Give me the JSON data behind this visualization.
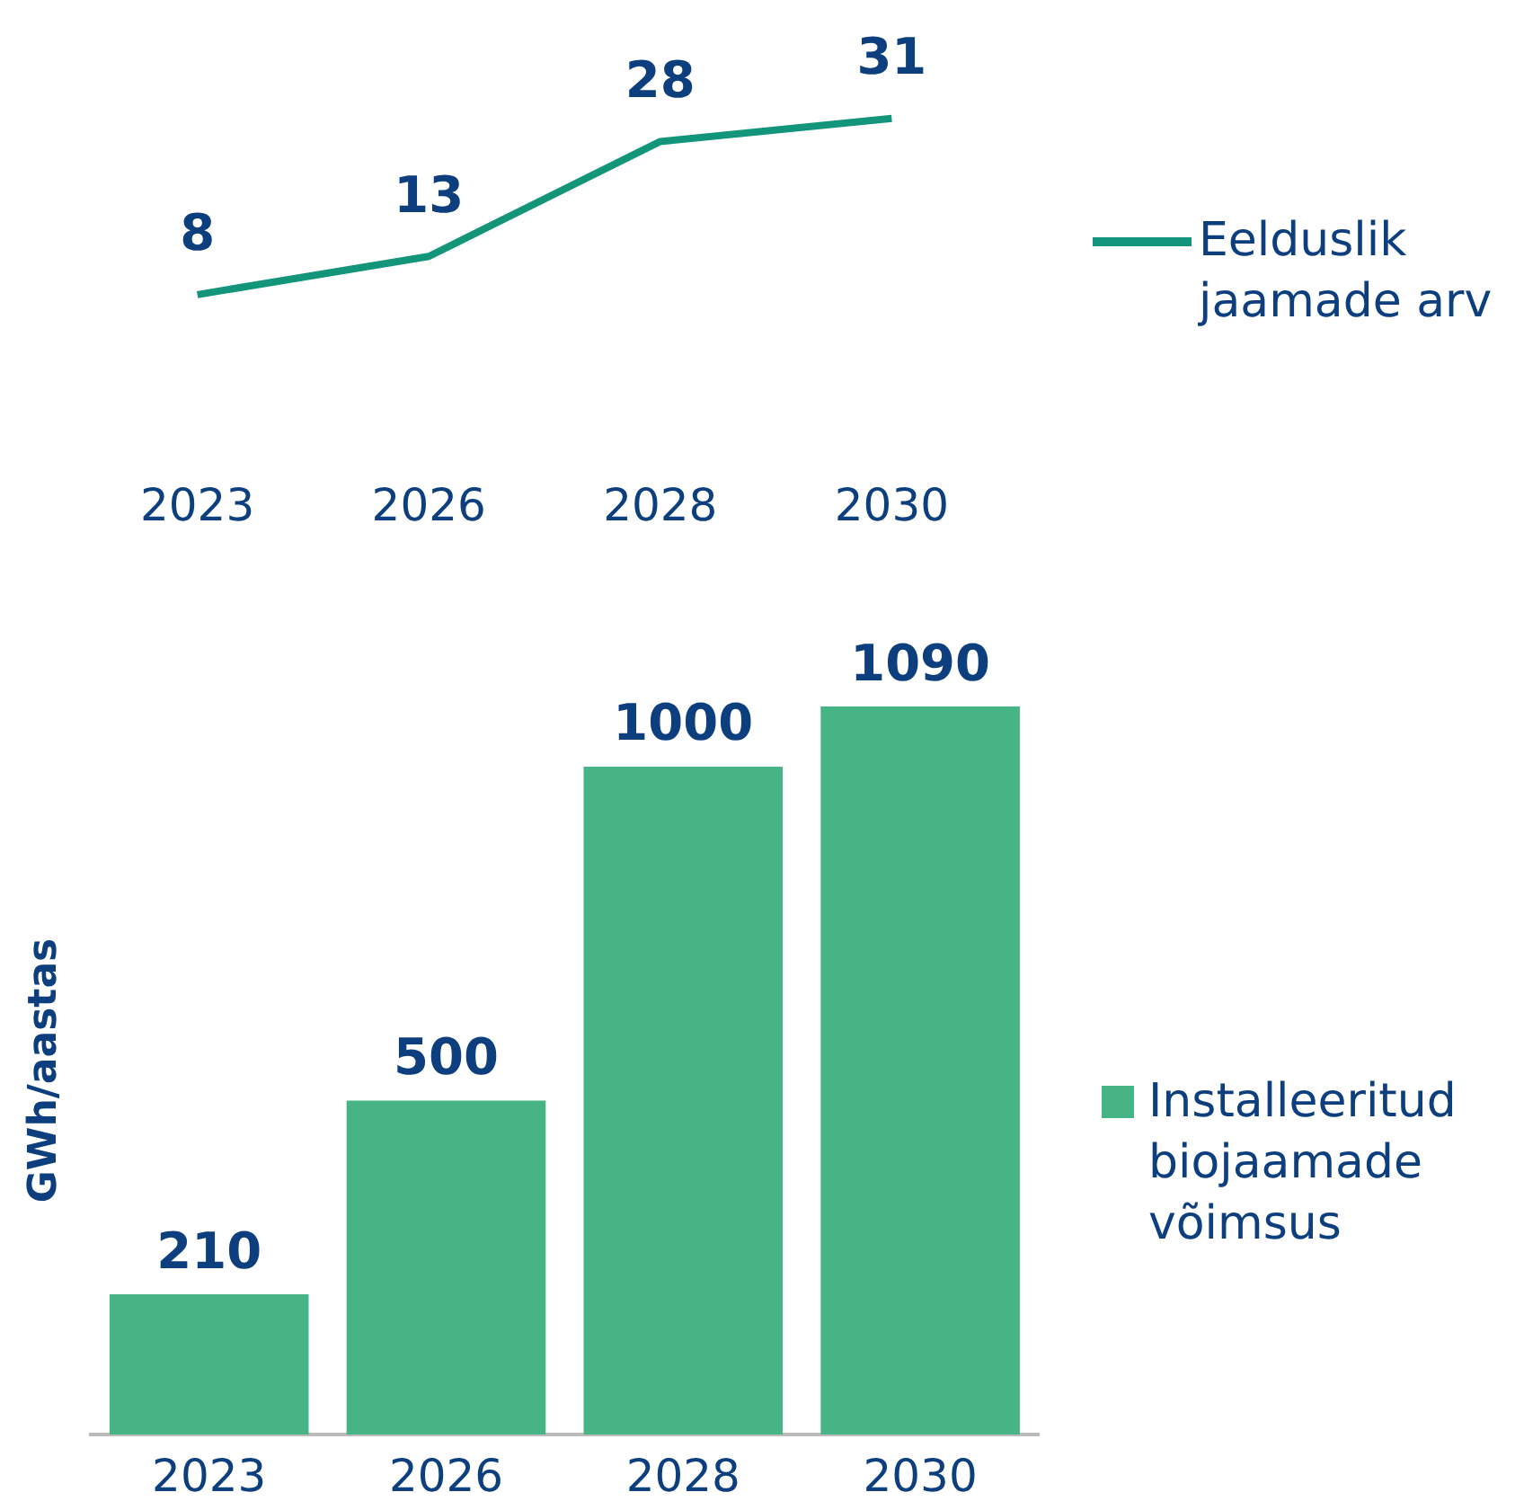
{
  "chart_data": [
    {
      "type": "line",
      "categories": [
        "2023",
        "2026",
        "2028",
        "2030"
      ],
      "series": [
        {
          "name": "Eelduslik jaamade arv",
          "color": "#12957a",
          "values": [
            8,
            13,
            28,
            31
          ]
        }
      ],
      "data_labels": true,
      "legend": "right",
      "tick_labels": "x",
      "grid": false,
      "marker": "none"
    },
    {
      "type": "bar",
      "categories": [
        "2023",
        "2026",
        "2028",
        "2030"
      ],
      "series": [
        {
          "name": "Installeeritud biojaamade võimsus",
          "color": "#47b486",
          "values": [
            210,
            500,
            1000,
            1090
          ]
        }
      ],
      "ylabel": "GWh/aastas",
      "data_labels": true,
      "legend": "right",
      "tick_labels": "x",
      "grid": false
    }
  ]
}
